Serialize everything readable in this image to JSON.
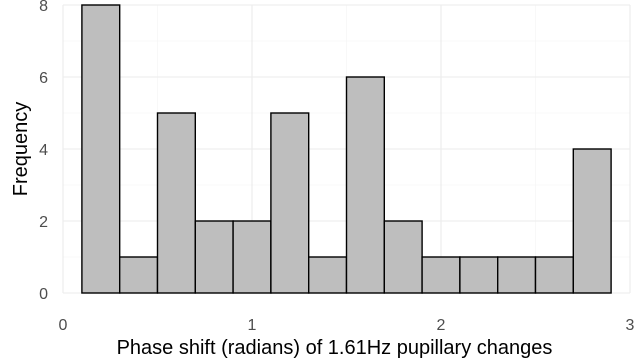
{
  "chart_data": {
    "type": "bar",
    "histogram": true,
    "xlabel": "Phase shift (radians) of 1.61Hz pupillary changes",
    "ylabel": "Frequency",
    "xlim": [
      0,
      3
    ],
    "ylim": [
      0,
      8
    ],
    "x_ticks": [
      0,
      1,
      2,
      3
    ],
    "y_ticks": [
      0,
      2,
      4,
      6,
      8
    ],
    "bin_width": 0.2,
    "bins": [
      {
        "start": 0.1,
        "end": 0.3,
        "count": 8
      },
      {
        "start": 0.3,
        "end": 0.5,
        "count": 1
      },
      {
        "start": 0.5,
        "end": 0.7,
        "count": 5
      },
      {
        "start": 0.7,
        "end": 0.9,
        "count": 2
      },
      {
        "start": 0.9,
        "end": 1.1,
        "count": 2
      },
      {
        "start": 1.1,
        "end": 1.3,
        "count": 5
      },
      {
        "start": 1.3,
        "end": 1.5,
        "count": 1
      },
      {
        "start": 1.5,
        "end": 1.7,
        "count": 6
      },
      {
        "start": 1.7,
        "end": 1.9,
        "count": 2
      },
      {
        "start": 1.9,
        "end": 2.1,
        "count": 1
      },
      {
        "start": 2.1,
        "end": 2.3,
        "count": 1
      },
      {
        "start": 2.3,
        "end": 2.5,
        "count": 1
      },
      {
        "start": 2.5,
        "end": 2.7,
        "count": 1
      },
      {
        "start": 2.7,
        "end": 2.9,
        "count": 4
      }
    ],
    "bar_fill": "#bebebe",
    "bar_stroke": "#000000",
    "grid": true,
    "legend": "none"
  }
}
